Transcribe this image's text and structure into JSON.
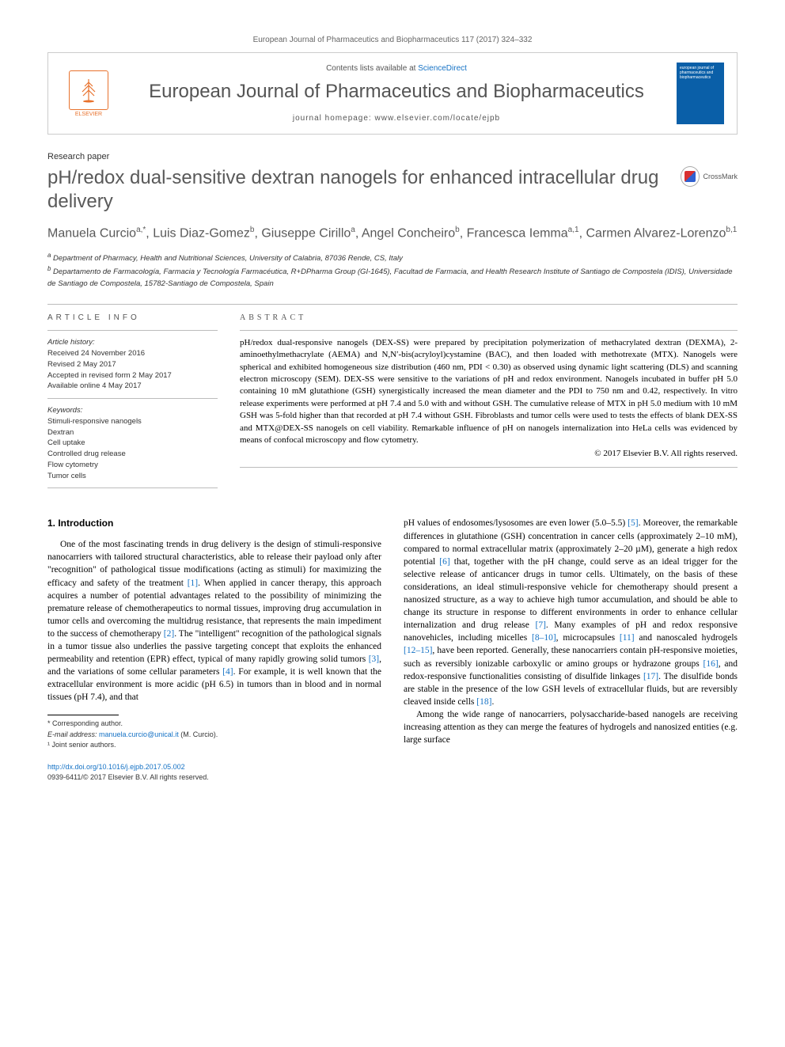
{
  "citation": "European Journal of Pharmaceutics and Biopharmaceutics 117 (2017) 324–332",
  "header": {
    "publisher": "ELSEVIER",
    "contents_prefix": "Contents lists available at ",
    "contents_link": "ScienceDirect",
    "journal_name": "European Journal of Pharmaceutics and Biopharmaceutics",
    "homepage_label": "journal homepage: ",
    "homepage_url": "www.elsevier.com/locate/ejpb",
    "cover_text": "european journal of pharmaceutics and biopharmaceutics"
  },
  "paper_type": "Research paper",
  "title": "pH/redox dual-sensitive dextran nanogels for enhanced intracellular drug delivery",
  "crossmark": "CrossMark",
  "authors_html": "Manuela Curcio<sup>a,*</sup>, Luis Diaz-Gomez<sup>b</sup>, Giuseppe Cirillo<sup>a</sup>, Angel Concheiro<sup>b</sup>, Francesca Iemma<sup>a,1</sup>, Carmen Alvarez-Lorenzo<sup>b,1</sup>",
  "affiliations": {
    "a": "Department of Pharmacy, Health and Nutritional Sciences, University of Calabria, 87036 Rende, CS, Italy",
    "b": "Departamento de Farmacología, Farmacia y Tecnología Farmacéutica, R+DPharma Group (GI-1645), Facultad de Farmacia, and Health Research Institute of Santiago de Compostela (IDIS), Universidade de Santiago de Compostela, 15782-Santiago de Compostela, Spain"
  },
  "info_heading": "ARTICLE INFO",
  "abstract_heading": "ABSTRACT",
  "article_info": {
    "history_label": "Article history:",
    "received": "Received 24 November 2016",
    "revised": "Revised 2 May 2017",
    "accepted": "Accepted in revised form 2 May 2017",
    "online": "Available online 4 May 2017",
    "keywords_label": "Keywords:",
    "keywords": [
      "Stimuli-responsive nanogels",
      "Dextran",
      "Cell uptake",
      "Controlled drug release",
      "Flow cytometry",
      "Tumor cells"
    ]
  },
  "abstract": "pH/redox dual-responsive nanogels (DEX-SS) were prepared by precipitation polymerization of methacrylated dextran (DEXMA), 2-aminoethylmethacrylate (AEMA) and N,N′-bis(acryloyl)cystamine (BAC), and then loaded with methotrexate (MTX). Nanogels were spherical and exhibited homogeneous size distribution (460 nm, PDI < 0.30) as observed using dynamic light scattering (DLS) and scanning electron microscopy (SEM). DEX-SS were sensitive to the variations of pH and redox environment. Nanogels incubated in buffer pH 5.0 containing 10 mM glutathione (GSH) synergistically increased the mean diameter and the PDI to 750 nm and 0.42, respectively. In vitro release experiments were performed at pH 7.4 and 5.0 with and without GSH. The cumulative release of MTX in pH 5.0 medium with 10 mM GSH was 5-fold higher than that recorded at pH 7.4 without GSH. Fibroblasts and tumor cells were used to tests the effects of blank DEX-SS and MTX@DEX-SS nanogels on cell viability. Remarkable influence of pH on nanogels internalization into HeLa cells was evidenced by means of confocal microscopy and flow cytometry.",
  "copyright": "© 2017 Elsevier B.V. All rights reserved.",
  "section1_heading": "1. Introduction",
  "body_col1": "One of the most fascinating trends in drug delivery is the design of stimuli-responsive nanocarriers with tailored structural characteristics, able to release their payload only after \"recognition\" of pathological tissue modifications (acting as stimuli) for maximizing the efficacy and safety of the treatment [1]. When applied in cancer therapy, this approach acquires a number of potential advantages related to the possibility of minimizing the premature release of chemotherapeutics to normal tissues, improving drug accumulation in tumor cells and overcoming the multidrug resistance, that represents the main impediment to the success of chemotherapy [2]. The \"intelligent\" recognition of the pathological signals in a tumor tissue also underlies the passive targeting concept that exploits the enhanced permeability and retention (EPR) effect, typical of many rapidly growing solid tumors [3], and the variations of some cellular parameters [4]. For example, it is well known that the extracellular environment is more acidic (pH 6.5) in tumors than in blood and in normal tissues (pH 7.4), and that",
  "body_col2_p1": "pH values of endosomes/lysosomes are even lower (5.0–5.5) [5]. Moreover, the remarkable differences in glutathione (GSH) concentration in cancer cells (approximately 2–10 mM), compared to normal extracellular matrix (approximately 2–20 µM), generate a high redox potential [6] that, together with the pH change, could serve as an ideal trigger for the selective release of anticancer drugs in tumor cells. Ultimately, on the basis of these considerations, an ideal stimuli-responsive vehicle for chemotherapy should present a nanosized structure, as a way to achieve high tumor accumulation, and should be able to change its structure in response to different environments in order to enhance cellular internalization and drug release [7]. Many examples of pH and redox responsive nanovehicles, including micelles [8–10], microcapsules [11] and nanoscaled hydrogels [12–15], have been reported. Generally, these nanocarriers contain pH-responsive moieties, such as reversibly ionizable carboxylic or amino groups or hydrazone groups [16], and redox-responsive functionalities consisting of disulfide linkages [17]. The disulfide bonds are stable in the presence of the low GSH levels of extracellular fluids, but are reversibly cleaved inside cells [18].",
  "body_col2_p2": "Among the wide range of nanocarriers, polysaccharide-based nanogels are receiving increasing attention as they can merge the features of hydrogels and nanosized entities (e.g. large surface",
  "footnotes": {
    "corresponding": "* Corresponding author.",
    "email_label": "E-mail address: ",
    "email": "manuela.curcio@unical.it",
    "email_person": " (M. Curcio).",
    "joint": "¹ Joint senior authors."
  },
  "bottom": {
    "doi": "http://dx.doi.org/10.1016/j.ejpb.2017.05.002",
    "issn_copy": "0939-6411/© 2017 Elsevier B.V. All rights reserved."
  },
  "refs": {
    "r1": "[1]",
    "r2": "[2]",
    "r3": "[3]",
    "r4": "[4]",
    "r5": "[5]",
    "r6": "[6]",
    "r7": "[7]",
    "r8": "[8–10]",
    "r11": "[11]",
    "r12": "[12–15]",
    "r16": "[16]",
    "r17": "[17]",
    "r18": "[18]"
  },
  "colors": {
    "link": "#1572c5",
    "heading_gray": "#595959",
    "orange": "#e8722d",
    "cover_blue": "#0a5fa8",
    "border_gray": "#bcbcbc"
  }
}
